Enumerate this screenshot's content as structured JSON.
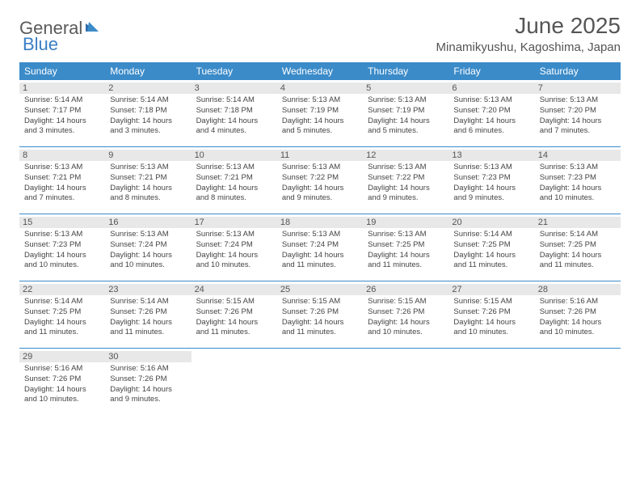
{
  "logo": {
    "part1": "General",
    "part2": "Blue"
  },
  "title": "June 2025",
  "location": "Minamikyushu, Kagoshima, Japan",
  "colors": {
    "header_bg": "#3b8bc9",
    "daynum_bg": "#e8e8e8",
    "text": "#444444",
    "logo_gray": "#5a5a5a",
    "logo_blue": "#3b7fc4"
  },
  "weekdays": [
    "Sunday",
    "Monday",
    "Tuesday",
    "Wednesday",
    "Thursday",
    "Friday",
    "Saturday"
  ],
  "weeks": [
    [
      {
        "n": "1",
        "sr": "Sunrise: 5:14 AM",
        "ss": "Sunset: 7:17 PM",
        "d1": "Daylight: 14 hours",
        "d2": "and 3 minutes."
      },
      {
        "n": "2",
        "sr": "Sunrise: 5:14 AM",
        "ss": "Sunset: 7:18 PM",
        "d1": "Daylight: 14 hours",
        "d2": "and 3 minutes."
      },
      {
        "n": "3",
        "sr": "Sunrise: 5:14 AM",
        "ss": "Sunset: 7:18 PM",
        "d1": "Daylight: 14 hours",
        "d2": "and 4 minutes."
      },
      {
        "n": "4",
        "sr": "Sunrise: 5:13 AM",
        "ss": "Sunset: 7:19 PM",
        "d1": "Daylight: 14 hours",
        "d2": "and 5 minutes."
      },
      {
        "n": "5",
        "sr": "Sunrise: 5:13 AM",
        "ss": "Sunset: 7:19 PM",
        "d1": "Daylight: 14 hours",
        "d2": "and 5 minutes."
      },
      {
        "n": "6",
        "sr": "Sunrise: 5:13 AM",
        "ss": "Sunset: 7:20 PM",
        "d1": "Daylight: 14 hours",
        "d2": "and 6 minutes."
      },
      {
        "n": "7",
        "sr": "Sunrise: 5:13 AM",
        "ss": "Sunset: 7:20 PM",
        "d1": "Daylight: 14 hours",
        "d2": "and 7 minutes."
      }
    ],
    [
      {
        "n": "8",
        "sr": "Sunrise: 5:13 AM",
        "ss": "Sunset: 7:21 PM",
        "d1": "Daylight: 14 hours",
        "d2": "and 7 minutes."
      },
      {
        "n": "9",
        "sr": "Sunrise: 5:13 AM",
        "ss": "Sunset: 7:21 PM",
        "d1": "Daylight: 14 hours",
        "d2": "and 8 minutes."
      },
      {
        "n": "10",
        "sr": "Sunrise: 5:13 AM",
        "ss": "Sunset: 7:21 PM",
        "d1": "Daylight: 14 hours",
        "d2": "and 8 minutes."
      },
      {
        "n": "11",
        "sr": "Sunrise: 5:13 AM",
        "ss": "Sunset: 7:22 PM",
        "d1": "Daylight: 14 hours",
        "d2": "and 9 minutes."
      },
      {
        "n": "12",
        "sr": "Sunrise: 5:13 AM",
        "ss": "Sunset: 7:22 PM",
        "d1": "Daylight: 14 hours",
        "d2": "and 9 minutes."
      },
      {
        "n": "13",
        "sr": "Sunrise: 5:13 AM",
        "ss": "Sunset: 7:23 PM",
        "d1": "Daylight: 14 hours",
        "d2": "and 9 minutes."
      },
      {
        "n": "14",
        "sr": "Sunrise: 5:13 AM",
        "ss": "Sunset: 7:23 PM",
        "d1": "Daylight: 14 hours",
        "d2": "and 10 minutes."
      }
    ],
    [
      {
        "n": "15",
        "sr": "Sunrise: 5:13 AM",
        "ss": "Sunset: 7:23 PM",
        "d1": "Daylight: 14 hours",
        "d2": "and 10 minutes."
      },
      {
        "n": "16",
        "sr": "Sunrise: 5:13 AM",
        "ss": "Sunset: 7:24 PM",
        "d1": "Daylight: 14 hours",
        "d2": "and 10 minutes."
      },
      {
        "n": "17",
        "sr": "Sunrise: 5:13 AM",
        "ss": "Sunset: 7:24 PM",
        "d1": "Daylight: 14 hours",
        "d2": "and 10 minutes."
      },
      {
        "n": "18",
        "sr": "Sunrise: 5:13 AM",
        "ss": "Sunset: 7:24 PM",
        "d1": "Daylight: 14 hours",
        "d2": "and 11 minutes."
      },
      {
        "n": "19",
        "sr": "Sunrise: 5:13 AM",
        "ss": "Sunset: 7:25 PM",
        "d1": "Daylight: 14 hours",
        "d2": "and 11 minutes."
      },
      {
        "n": "20",
        "sr": "Sunrise: 5:14 AM",
        "ss": "Sunset: 7:25 PM",
        "d1": "Daylight: 14 hours",
        "d2": "and 11 minutes."
      },
      {
        "n": "21",
        "sr": "Sunrise: 5:14 AM",
        "ss": "Sunset: 7:25 PM",
        "d1": "Daylight: 14 hours",
        "d2": "and 11 minutes."
      }
    ],
    [
      {
        "n": "22",
        "sr": "Sunrise: 5:14 AM",
        "ss": "Sunset: 7:25 PM",
        "d1": "Daylight: 14 hours",
        "d2": "and 11 minutes."
      },
      {
        "n": "23",
        "sr": "Sunrise: 5:14 AM",
        "ss": "Sunset: 7:26 PM",
        "d1": "Daylight: 14 hours",
        "d2": "and 11 minutes."
      },
      {
        "n": "24",
        "sr": "Sunrise: 5:15 AM",
        "ss": "Sunset: 7:26 PM",
        "d1": "Daylight: 14 hours",
        "d2": "and 11 minutes."
      },
      {
        "n": "25",
        "sr": "Sunrise: 5:15 AM",
        "ss": "Sunset: 7:26 PM",
        "d1": "Daylight: 14 hours",
        "d2": "and 11 minutes."
      },
      {
        "n": "26",
        "sr": "Sunrise: 5:15 AM",
        "ss": "Sunset: 7:26 PM",
        "d1": "Daylight: 14 hours",
        "d2": "and 10 minutes."
      },
      {
        "n": "27",
        "sr": "Sunrise: 5:15 AM",
        "ss": "Sunset: 7:26 PM",
        "d1": "Daylight: 14 hours",
        "d2": "and 10 minutes."
      },
      {
        "n": "28",
        "sr": "Sunrise: 5:16 AM",
        "ss": "Sunset: 7:26 PM",
        "d1": "Daylight: 14 hours",
        "d2": "and 10 minutes."
      }
    ],
    [
      {
        "n": "29",
        "sr": "Sunrise: 5:16 AM",
        "ss": "Sunset: 7:26 PM",
        "d1": "Daylight: 14 hours",
        "d2": "and 10 minutes."
      },
      {
        "n": "30",
        "sr": "Sunrise: 5:16 AM",
        "ss": "Sunset: 7:26 PM",
        "d1": "Daylight: 14 hours",
        "d2": "and 9 minutes."
      },
      null,
      null,
      null,
      null,
      null
    ]
  ]
}
